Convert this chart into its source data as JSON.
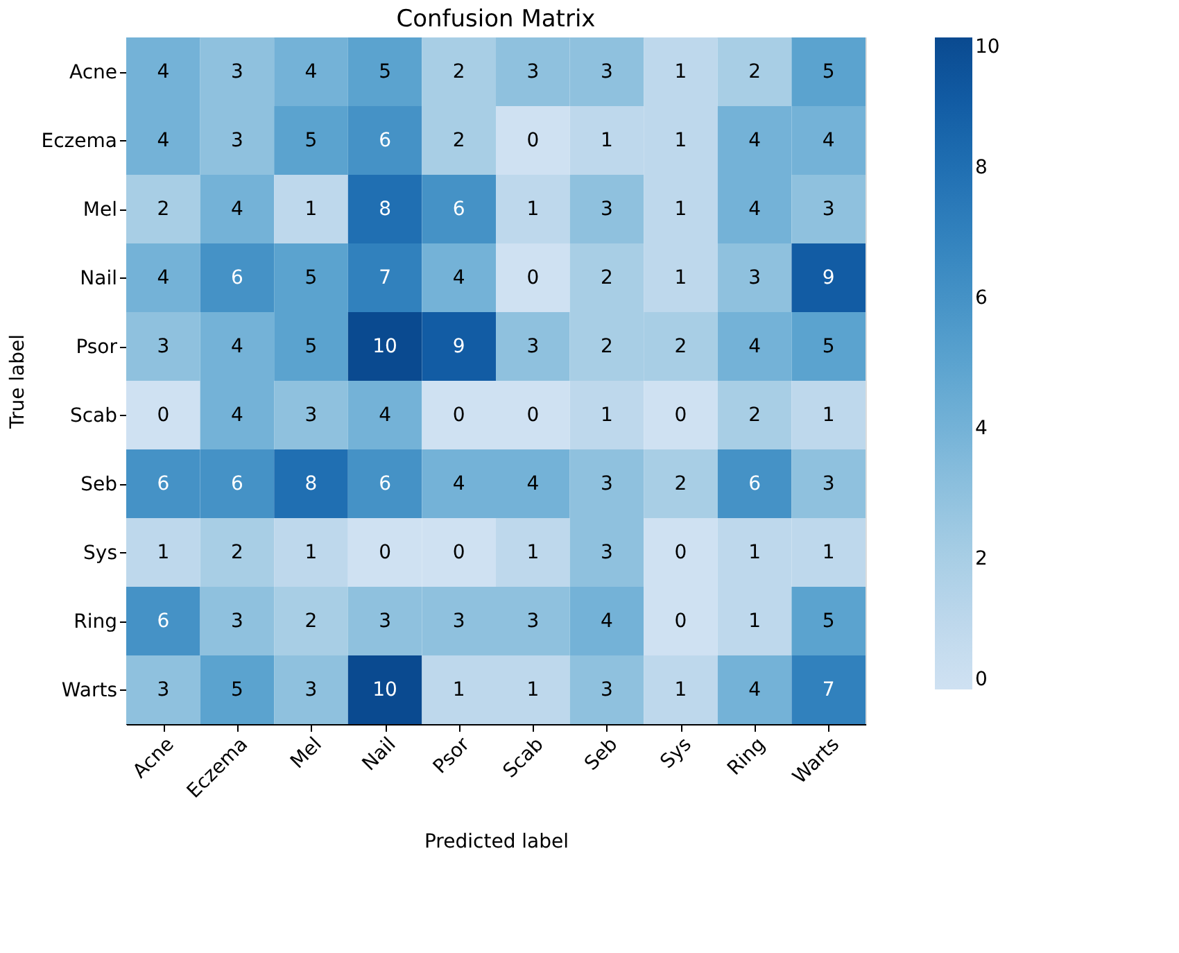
{
  "chart_data": {
    "type": "heatmap",
    "title": "Confusion Matrix",
    "xlabel": "Predicted label",
    "ylabel": "True label",
    "categories": [
      "Acne",
      "Eczema",
      "Mel",
      "Nail",
      "Psor",
      "Scab",
      "Seb",
      "Sys",
      "Ring",
      "Warts"
    ],
    "y_categories": [
      "Acne",
      "Eczema",
      "Mel",
      "Nail",
      "Psor",
      "Scab",
      "Seb",
      "Sys",
      "Ring",
      "Warts"
    ],
    "cells": [
      [
        4,
        3,
        4,
        5,
        2,
        3,
        3,
        1,
        2,
        5
      ],
      [
        4,
        3,
        5,
        6,
        2,
        0,
        1,
        1,
        4,
        4
      ],
      [
        2,
        4,
        1,
        8,
        6,
        1,
        3,
        1,
        4,
        3
      ],
      [
        4,
        6,
        5,
        7,
        4,
        0,
        2,
        1,
        3,
        9
      ],
      [
        3,
        4,
        5,
        10,
        9,
        3,
        2,
        2,
        4,
        5
      ],
      [
        0,
        4,
        3,
        4,
        0,
        0,
        1,
        0,
        2,
        1
      ],
      [
        6,
        6,
        8,
        6,
        4,
        4,
        3,
        2,
        6,
        3
      ],
      [
        1,
        2,
        1,
        0,
        0,
        1,
        3,
        0,
        1,
        1
      ],
      [
        6,
        3,
        2,
        3,
        3,
        3,
        4,
        0,
        1,
        5
      ],
      [
        3,
        5,
        3,
        10,
        1,
        1,
        3,
        1,
        4,
        7
      ]
    ],
    "clim": [
      0,
      10
    ],
    "cticks": [
      0,
      2,
      4,
      6,
      8,
      10
    ],
    "data_labels": true,
    "grid": false
  }
}
